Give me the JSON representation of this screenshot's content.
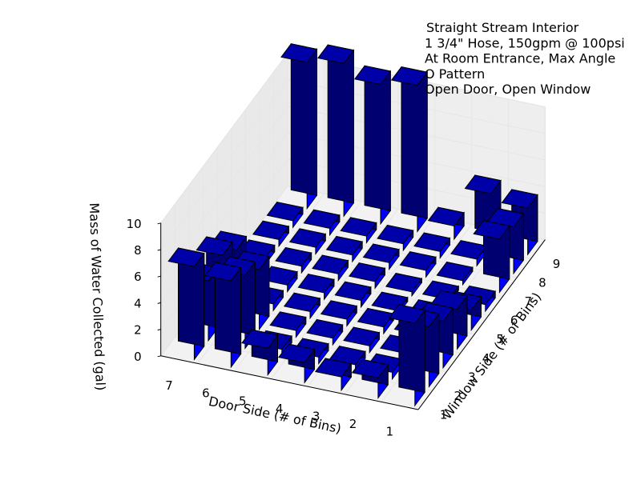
{
  "chart_data": {
    "type": "bar3d",
    "title_lines": [
      "Straight Stream Interior",
      "1 3/4\" Hose, 150gpm @ 100psi",
      "At Room Entrance, Max Angle",
      "O Pattern",
      "Open Door, Open Window"
    ],
    "xlabel": "Window Side (# of Bins)",
    "ylabel": "Door Side (# of Bins)",
    "zlabel": "Mass of Water Collected (gal)",
    "x_ticks": [
      "1",
      "2",
      "3",
      "4",
      "5",
      "6",
      "7",
      "8",
      "9"
    ],
    "y_ticks": [
      "1",
      "2",
      "3",
      "4",
      "5",
      "6",
      "7"
    ],
    "z_ticks": [
      "0",
      "2",
      "4",
      "6",
      "8",
      "10"
    ],
    "zlim": [
      0,
      10
    ],
    "bar_color": "#0000ff",
    "grid": true,
    "values": [
      [
        6.2,
        4.5,
        3.5,
        3.0,
        1.5,
        0.5,
        4.0,
        3.5,
        3.5
      ],
      [
        1.5,
        0.5,
        0.5,
        0.5,
        0.3,
        0.3,
        0.3,
        0.5,
        4.0
      ],
      [
        1.0,
        0.5,
        0.5,
        0.5,
        0.3,
        0.3,
        0.5,
        0.5,
        1.0
      ],
      [
        1.5,
        0.5,
        0.5,
        0.5,
        0.5,
        0.5,
        0.5,
        0.5,
        11.0
      ],
      [
        2.0,
        0.5,
        0.5,
        0.5,
        0.5,
        0.5,
        0.5,
        0.5,
        10.5
      ],
      [
        6.5,
        5.5,
        4.5,
        0.5,
        0.5,
        0.5,
        0.5,
        0.5,
        11.5
      ],
      [
        7.0,
        4.5,
        5.0,
        4.0,
        0.5,
        0.5,
        0.5,
        0.5,
        11.0
      ]
    ]
  }
}
